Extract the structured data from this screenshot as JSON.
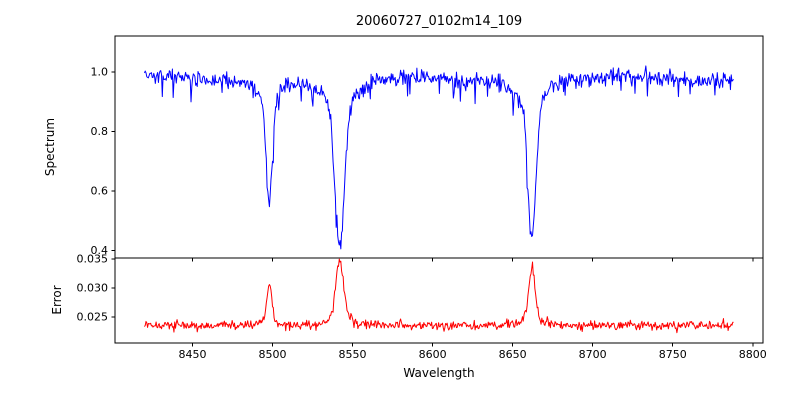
{
  "chart_data": {
    "type": "line",
    "title": "20060727_0102m14_109",
    "xlabel": "Wavelength",
    "x_range": [
      8420,
      8788
    ],
    "x_ticks": [
      8450,
      8500,
      8550,
      8600,
      8650,
      8700,
      8750,
      8800
    ],
    "x_tick_labels": [
      "8450",
      "8500",
      "8550",
      "8600",
      "8650",
      "8700",
      "8750",
      "8800"
    ],
    "n_points": 760,
    "seed": 20060727,
    "panels": [
      {
        "name": "spectrum",
        "ylabel": "Spectrum",
        "line_color": "#0000ff",
        "ylim": [
          0.375,
          1.12
        ],
        "y_ticks": [
          0.4,
          0.6,
          0.8,
          1.0
        ],
        "y_tick_labels": [
          "0.4",
          "0.6",
          "0.8",
          "1.0"
        ],
        "continuum": 0.975,
        "noise_sigma": 0.014,
        "absorption_lines": [
          {
            "center": 8498.0,
            "min_value": 0.575,
            "width": 2.0
          },
          {
            "center": 8542.0,
            "min_value": 0.415,
            "width": 3.0
          },
          {
            "center": 8662.0,
            "min_value": 0.44,
            "width": 2.4
          }
        ]
      },
      {
        "name": "error",
        "ylabel": "Error",
        "line_color": "#ff0000",
        "ylim": [
          0.0205,
          0.0352
        ],
        "y_ticks": [
          0.025,
          0.03,
          0.035
        ],
        "y_tick_labels": [
          "0.025",
          "0.030",
          "0.035"
        ],
        "baseline": 0.0235,
        "noise_sigma": 0.0004,
        "peaks": [
          {
            "center": 8498.0,
            "max_value": 0.0305,
            "width": 1.5
          },
          {
            "center": 8542.0,
            "max_value": 0.035,
            "width": 2.2
          },
          {
            "center": 8662.0,
            "max_value": 0.034,
            "width": 1.8
          }
        ]
      }
    ]
  }
}
